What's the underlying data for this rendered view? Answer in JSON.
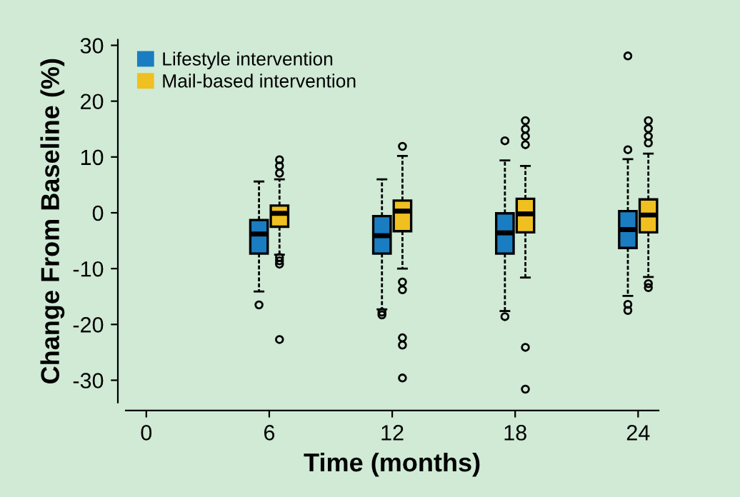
{
  "chart_data": {
    "type": "box",
    "xlabel": "Time (months)",
    "ylabel": "Change From Baseline (%)",
    "xlim": [
      -1,
      25
    ],
    "xticks": [
      0,
      6,
      12,
      18,
      24
    ],
    "ylim": [
      -34,
      31
    ],
    "yticks": [
      -30,
      -20,
      -10,
      0,
      10,
      20,
      30
    ],
    "legend": "top left",
    "grid": false,
    "series": [
      {
        "name": "Lifestyle intervention",
        "color": "#1a7dc1",
        "x": [
          6,
          12,
          18,
          24
        ],
        "boxes": [
          {
            "low": -14.1,
            "q1": -7.3,
            "median": -3.8,
            "q3": -1.3,
            "high": 5.6,
            "outliers": [
              -16.5
            ]
          },
          {
            "low": -17.3,
            "q1": -7.3,
            "median": -4.1,
            "q3": -0.6,
            "high": 6.0,
            "outliers": [
              -17.8,
              -18.3
            ]
          },
          {
            "low": -17.6,
            "q1": -7.3,
            "median": -3.6,
            "q3": -0.1,
            "high": 9.4,
            "outliers": [
              12.9,
              -18.6
            ]
          },
          {
            "low": -14.9,
            "q1": -6.3,
            "median": -3.0,
            "q3": 0.3,
            "high": 9.6,
            "outliers": [
              11.3,
              28.1,
              -16.4,
              -17.5
            ]
          }
        ]
      },
      {
        "name": "Mail-based intervention",
        "color": "#f0c020",
        "x": [
          6,
          12,
          18,
          24
        ],
        "boxes": [
          {
            "low": -7.5,
            "q1": -2.5,
            "median": -0.1,
            "q3": 1.3,
            "high": 6.0,
            "outliers": [
              9.5,
              8.4,
              7.1,
              -8.0,
              -8.6,
              -9.2,
              -22.7
            ]
          },
          {
            "low": -10.0,
            "q1": -3.3,
            "median": 0.3,
            "q3": 2.2,
            "high": 10.2,
            "outliers": [
              11.9,
              -12.4,
              -13.8,
              -22.4,
              -23.7,
              -29.6
            ]
          },
          {
            "low": -11.6,
            "q1": -3.5,
            "median": -0.2,
            "q3": 2.5,
            "high": 8.4,
            "outliers": [
              16.5,
              15.0,
              13.7,
              12.2,
              -24.1,
              -31.6
            ]
          },
          {
            "low": -11.5,
            "q1": -3.5,
            "median": -0.4,
            "q3": 2.4,
            "high": 10.6,
            "outliers": [
              16.5,
              15.1,
              13.7,
              12.5,
              -12.7,
              -13.4
            ]
          }
        ]
      }
    ]
  }
}
